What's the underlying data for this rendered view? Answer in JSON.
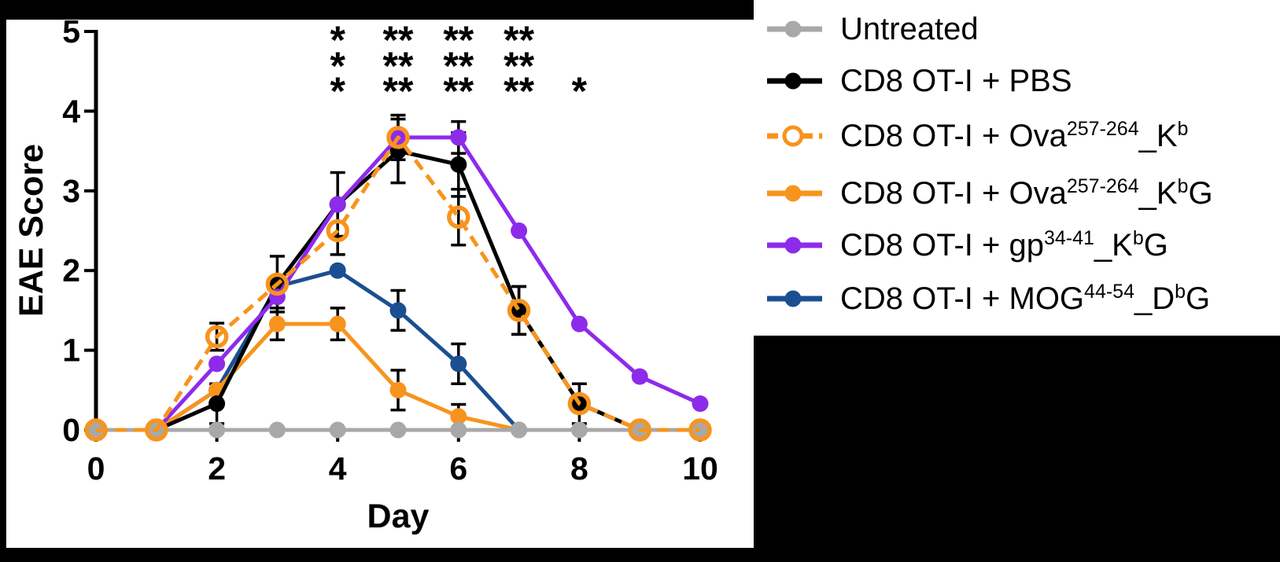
{
  "figure": {
    "background_color": "#000000",
    "panel_color": "#FFFFFF",
    "redacted_box": true
  },
  "chart_data": {
    "type": "line",
    "title": "",
    "xlabel": "Day",
    "ylabel": "EAE Score",
    "xlim": [
      0,
      10
    ],
    "ylim": [
      0,
      5
    ],
    "x_ticks": [
      0,
      2,
      4,
      6,
      8,
      10
    ],
    "x_tick_labels": [
      "0",
      "2",
      "4",
      "6",
      "8",
      "10"
    ],
    "y_ticks": [
      0,
      1,
      2,
      3,
      4,
      5
    ],
    "y_tick_labels": [
      "0",
      "1",
      "2",
      "3",
      "4",
      "5"
    ],
    "grid": false,
    "legend_position": "right",
    "error_bar_color": "#000000",
    "series": [
      {
        "name": "Untreated",
        "color": "#A8A8A8",
        "marker": "circle-filled",
        "line_style": "solid",
        "points": [
          {
            "x": 0,
            "y": 0
          },
          {
            "x": 1,
            "y": 0
          },
          {
            "x": 2,
            "y": 0
          },
          {
            "x": 3,
            "y": 0
          },
          {
            "x": 4,
            "y": 0
          },
          {
            "x": 5,
            "y": 0
          },
          {
            "x": 6,
            "y": 0
          },
          {
            "x": 7,
            "y": 0
          },
          {
            "x": 8,
            "y": 0
          },
          {
            "x": 9,
            "y": 0
          },
          {
            "x": 10,
            "y": 0
          }
        ]
      },
      {
        "name": "CD8 OT-I + PBS",
        "color": "#000000",
        "marker": "circle-filled",
        "line_style": "solid",
        "points": [
          {
            "x": 0,
            "y": 0
          },
          {
            "x": 1,
            "y": 0
          },
          {
            "x": 2,
            "y": 0.33,
            "e": 0.25
          },
          {
            "x": 3,
            "y": 1.83,
            "e": 0.35
          },
          {
            "x": 4,
            "y": 2.83,
            "e": 0.4
          },
          {
            "x": 5,
            "y": 3.5,
            "e": 0.4
          },
          {
            "x": 6,
            "y": 3.33,
            "e": 0.4
          },
          {
            "x": 7,
            "y": 1.5,
            "e": 0.3
          },
          {
            "x": 8,
            "y": 0.33,
            "e": 0.25
          },
          {
            "x": 9,
            "y": 0
          }
        ]
      },
      {
        "name": "CD8 OT-I + Ova257-264_Kb",
        "color": "#F7941D",
        "marker": "circle-open",
        "line_style": "dashed",
        "points": [
          {
            "x": 0,
            "y": 0
          },
          {
            "x": 1,
            "y": 0
          },
          {
            "x": 2,
            "y": 1.17,
            "e": 0.17
          },
          {
            "x": 3,
            "y": 1.83
          },
          {
            "x": 4,
            "y": 2.5,
            "e": 0.3
          },
          {
            "x": 5,
            "y": 3.67,
            "e": 0.28
          },
          {
            "x": 6,
            "y": 2.67,
            "e": 0.35
          },
          {
            "x": 7,
            "y": 1.5,
            "e": 0.3
          },
          {
            "x": 8,
            "y": 0.33
          },
          {
            "x": 9,
            "y": 0
          },
          {
            "x": 10,
            "y": 0
          }
        ]
      },
      {
        "name": "CD8 OT-I + Ova257-264_KbG",
        "color": "#F7941D",
        "marker": "circle-filled",
        "line_style": "solid",
        "points": [
          {
            "x": 0,
            "y": 0
          },
          {
            "x": 1,
            "y": 0
          },
          {
            "x": 2,
            "y": 0.5
          },
          {
            "x": 3,
            "y": 1.33,
            "e": 0.2
          },
          {
            "x": 4,
            "y": 1.33,
            "e": 0.2
          },
          {
            "x": 5,
            "y": 0.5,
            "e": 0.25
          },
          {
            "x": 6,
            "y": 0.17,
            "e": 0.15
          },
          {
            "x": 7,
            "y": 0
          }
        ]
      },
      {
        "name": "CD8 OT-I + gp34-41_KbG",
        "color": "#8D2BEB",
        "marker": "circle-filled",
        "line_style": "solid",
        "points": [
          {
            "x": 0,
            "y": 0
          },
          {
            "x": 1,
            "y": 0
          },
          {
            "x": 2,
            "y": 0.83
          },
          {
            "x": 3,
            "y": 1.67
          },
          {
            "x": 4,
            "y": 2.83
          },
          {
            "x": 5,
            "y": 3.67
          },
          {
            "x": 6,
            "y": 3.67,
            "e": 0.2
          },
          {
            "x": 7,
            "y": 2.5
          },
          {
            "x": 8,
            "y": 1.33
          },
          {
            "x": 9,
            "y": 0.67
          },
          {
            "x": 10,
            "y": 0.33
          }
        ]
      },
      {
        "name": "CD8 OT-I + MOG44-54_DbG",
        "color": "#1B4F91",
        "marker": "circle-filled",
        "line_style": "solid",
        "points": [
          {
            "x": 0,
            "y": 0
          },
          {
            "x": 1,
            "y": 0
          },
          {
            "x": 2,
            "y": 0.5
          },
          {
            "x": 3,
            "y": 1.8
          },
          {
            "x": 4,
            "y": 2.0
          },
          {
            "x": 5,
            "y": 1.5,
            "e": 0.25
          },
          {
            "x": 6,
            "y": 0.83,
            "e": 0.25
          },
          {
            "x": 7,
            "y": 0
          }
        ]
      }
    ],
    "draw_order": [
      5,
      3,
      1,
      4,
      0,
      2
    ],
    "significance": {
      "rows": [
        {
          "series": "CD8 OT-I + PBS",
          "color": "#000000",
          "marks": [
            {
              "day": 4,
              "label": "*"
            },
            {
              "day": 5,
              "label": "**"
            },
            {
              "day": 6,
              "label": "**"
            },
            {
              "day": 7,
              "label": "**"
            }
          ]
        },
        {
          "series": "CD8 OT-I + Ova257-264_KbG",
          "color": "#F7941D",
          "marks": [
            {
              "day": 4,
              "label": "*"
            },
            {
              "day": 5,
              "label": "**"
            },
            {
              "day": 6,
              "label": "**"
            },
            {
              "day": 7,
              "label": "**"
            }
          ]
        },
        {
          "series": "CD8 OT-I + gp34-41_KbG",
          "color": "#8D2BEB",
          "marks": [
            {
              "day": 4,
              "label": "*"
            },
            {
              "day": 5,
              "label": "**"
            },
            {
              "day": 6,
              "label": "**"
            },
            {
              "day": 7,
              "label": "**"
            },
            {
              "day": 8,
              "label": "*"
            }
          ]
        }
      ]
    }
  },
  "legend": {
    "items": [
      {
        "label": "Untreated",
        "color": "#A8A8A8",
        "marker": "circle-filled",
        "line_style": "solid",
        "segments": [
          {
            "text": "Untreated"
          }
        ]
      },
      {
        "label": "CD8 OT-I + PBS",
        "color": "#000000",
        "marker": "circle-filled",
        "line_style": "solid",
        "segments": [
          {
            "text": "CD8 OT-I + PBS"
          }
        ]
      },
      {
        "label": "CD8 OT-I + Ova257-264_Kb",
        "color": "#F7941D",
        "marker": "circle-open",
        "line_style": "dashed",
        "segments": [
          {
            "text": "CD8 OT-I + Ova"
          },
          {
            "text": "257-264",
            "sup": true
          },
          {
            "text": "_K"
          },
          {
            "text": "b",
            "sup": true
          }
        ]
      },
      {
        "label": "CD8 OT-I + Ova257-264_KbG",
        "color": "#F7941D",
        "marker": "circle-filled",
        "line_style": "solid",
        "segments": [
          {
            "text": "CD8 OT-I + Ova"
          },
          {
            "text": "257-264",
            "sup": true
          },
          {
            "text": "_K"
          },
          {
            "text": "b",
            "sup": true
          },
          {
            "text": "G"
          }
        ]
      },
      {
        "label": "CD8 OT-I + gp34-41_KbG",
        "color": "#8D2BEB",
        "marker": "circle-filled",
        "line_style": "solid",
        "segments": [
          {
            "text": "CD8 OT-I + gp"
          },
          {
            "text": "34-41",
            "sup": true
          },
          {
            "text": "_K"
          },
          {
            "text": "b",
            "sup": true
          },
          {
            "text": "G"
          }
        ]
      },
      {
        "label": "CD8 OT-I + MOG44-54_DbG",
        "color": "#1B4F91",
        "marker": "circle-filled",
        "line_style": "solid",
        "segments": [
          {
            "text": "CD8 OT-I + MOG"
          },
          {
            "text": "44-54",
            "sup": true
          },
          {
            "text": "_D"
          },
          {
            "text": "b",
            "sup": true
          },
          {
            "text": "G"
          }
        ]
      }
    ]
  }
}
